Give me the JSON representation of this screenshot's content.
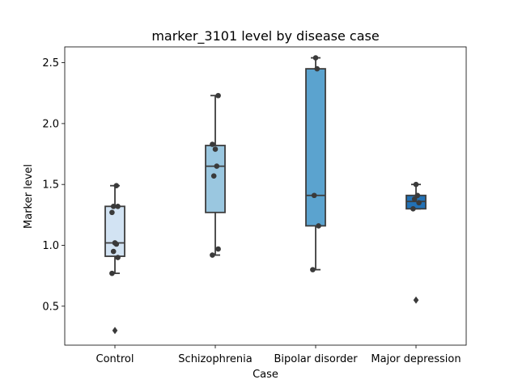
{
  "chart_data": {
    "type": "box",
    "title": "marker_3101 level by disease case",
    "xlabel": "Case",
    "ylabel": "Marker level",
    "ylim": [
      0.18,
      2.63
    ],
    "yticks": [
      "0.5",
      "1.0",
      "1.5",
      "2.0",
      "2.5"
    ],
    "ytick_values": [
      0.5,
      1.0,
      1.5,
      2.0,
      2.5
    ],
    "categories": [
      "Control",
      "Schizophrenia",
      "Bipolar disorder",
      "Major depression"
    ],
    "boxes": [
      {
        "category": "Control",
        "color": "#d2e3f3",
        "q1": 0.91,
        "median": 1.02,
        "q3": 1.32,
        "whisker_low": 0.77,
        "whisker_high": 1.49,
        "points": [
          0.77,
          0.9,
          0.95,
          1.01,
          1.02,
          1.27,
          1.32,
          1.32,
          1.49
        ],
        "outliers": [
          0.3
        ]
      },
      {
        "category": "Schizophrenia",
        "color": "#9ac7e0",
        "q1": 1.27,
        "median": 1.65,
        "q3": 1.82,
        "whisker_low": 0.92,
        "whisker_high": 2.23,
        "points": [
          0.92,
          0.97,
          1.57,
          1.65,
          1.79,
          1.83,
          2.23
        ],
        "outliers": []
      },
      {
        "category": "Bipolar disorder",
        "color": "#5ba3cf",
        "q1": 1.16,
        "median": 1.41,
        "q3": 2.45,
        "whisker_low": 0.8,
        "whisker_high": 2.54,
        "points": [
          0.8,
          1.16,
          1.41,
          2.45,
          2.54
        ],
        "outliers": []
      },
      {
        "category": "Major depression",
        "color": "#2271b5",
        "q1": 1.3,
        "median": 1.36,
        "q3": 1.41,
        "whisker_low": 1.3,
        "whisker_high": 1.5,
        "points": [
          1.3,
          1.35,
          1.38,
          1.41,
          1.5
        ],
        "outliers": [
          0.55
        ]
      }
    ]
  }
}
